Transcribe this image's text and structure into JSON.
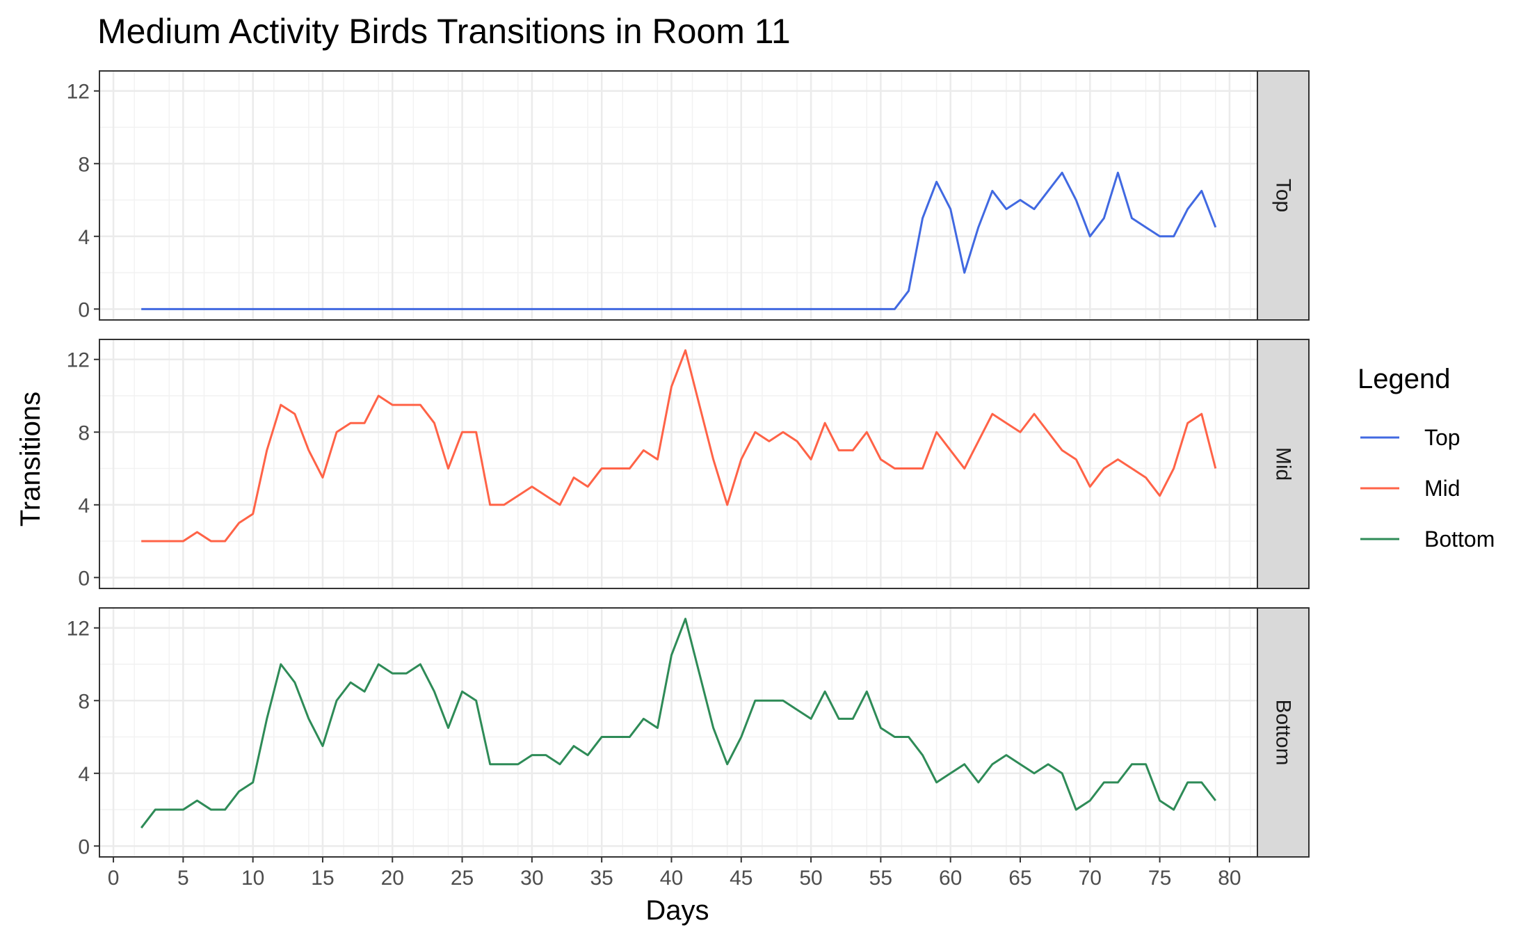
{
  "chart_data": {
    "type": "line",
    "title": "Medium Activity Birds Transitions in Room 11",
    "xlabel": "Days",
    "ylabel": "Transitions",
    "xlim": [
      -1,
      82
    ],
    "ylim": [
      -0.6,
      13.1
    ],
    "x_ticks": [
      0,
      5,
      10,
      15,
      20,
      25,
      30,
      35,
      40,
      45,
      50,
      55,
      60,
      65,
      70,
      75,
      80
    ],
    "y_ticks": [
      0,
      4,
      8,
      12
    ],
    "grid": true,
    "facets": [
      "Top",
      "Mid",
      "Bottom"
    ],
    "legend": {
      "title": "Legend",
      "placement": "right",
      "entries": [
        "Top",
        "Mid",
        "Bottom"
      ]
    },
    "colors": {
      "Top": "#4169e1",
      "Mid": "#ff6347",
      "Bottom": "#2e8b57"
    },
    "x": [
      2,
      3,
      4,
      5,
      6,
      7,
      8,
      9,
      10,
      11,
      12,
      13,
      14,
      15,
      16,
      17,
      18,
      19,
      20,
      21,
      22,
      23,
      24,
      25,
      26,
      27,
      28,
      29,
      30,
      31,
      32,
      33,
      34,
      35,
      36,
      37,
      38,
      39,
      40,
      41,
      42,
      43,
      44,
      45,
      46,
      47,
      48,
      49,
      50,
      51,
      52,
      53,
      54,
      55,
      56,
      57,
      58,
      59,
      60,
      61,
      62,
      63,
      64,
      65,
      66,
      67,
      68,
      69,
      70,
      71,
      72,
      73,
      74,
      75,
      76,
      77,
      78,
      79
    ],
    "series": [
      {
        "name": "Top",
        "values": [
          0,
          0,
          0,
          0,
          0,
          0,
          0,
          0,
          0,
          0,
          0,
          0,
          0,
          0,
          0,
          0,
          0,
          0,
          0,
          0,
          0,
          0,
          0,
          0,
          0,
          0,
          0,
          0,
          0,
          0,
          0,
          0,
          0,
          0,
          0,
          0,
          0,
          0,
          0,
          0,
          0,
          0,
          0,
          0,
          0,
          0,
          0,
          0,
          0,
          0,
          0,
          0,
          0,
          0,
          0,
          1,
          5,
          7,
          5.5,
          2,
          4.5,
          6.5,
          5.5,
          6,
          5.5,
          6.5,
          7.5,
          6,
          4,
          5,
          7.5,
          5,
          4.5,
          4,
          4,
          5.5,
          6.5,
          4.5
        ]
      },
      {
        "name": "Mid",
        "values": [
          2,
          2,
          2,
          2,
          2.5,
          2,
          2,
          3,
          3.5,
          7,
          9.5,
          9,
          7,
          5.5,
          8,
          8.5,
          8.5,
          10,
          9.5,
          9.5,
          9.5,
          8.5,
          6,
          8,
          8,
          4,
          4,
          4.5,
          5,
          4.5,
          4,
          5.5,
          5,
          6,
          6,
          6,
          7,
          6.5,
          10.5,
          12.5,
          9.5,
          6.5,
          4,
          6.5,
          8,
          7.5,
          8,
          7.5,
          6.5,
          8.5,
          7,
          7,
          8,
          6.5,
          6,
          6,
          6,
          8,
          7,
          6,
          7.5,
          9,
          8.5,
          8,
          9,
          8,
          7,
          6.5,
          5,
          6,
          6.5,
          6,
          5.5,
          4.5,
          6,
          8.5,
          9,
          6
        ]
      },
      {
        "name": "Bottom",
        "values": [
          1,
          2,
          2,
          2,
          2.5,
          2,
          2,
          3,
          3.5,
          7,
          10,
          9,
          7,
          5.5,
          8,
          9,
          8.5,
          10,
          9.5,
          9.5,
          10,
          8.5,
          6.5,
          8.5,
          8,
          4.5,
          4.5,
          4.5,
          5,
          5,
          4.5,
          5.5,
          5,
          6,
          6,
          6,
          7,
          6.5,
          10.5,
          12.5,
          9.5,
          6.5,
          4.5,
          6,
          8,
          8,
          8,
          7.5,
          7,
          8.5,
          7,
          7,
          8.5,
          6.5,
          6,
          6,
          5,
          3.5,
          4,
          4.5,
          3.5,
          4.5,
          5,
          4.5,
          4,
          4.5,
          4,
          2,
          2.5,
          3.5,
          3.5,
          4.5,
          4.5,
          2.5,
          2,
          3.5,
          3.5,
          2.5
        ]
      }
    ]
  }
}
